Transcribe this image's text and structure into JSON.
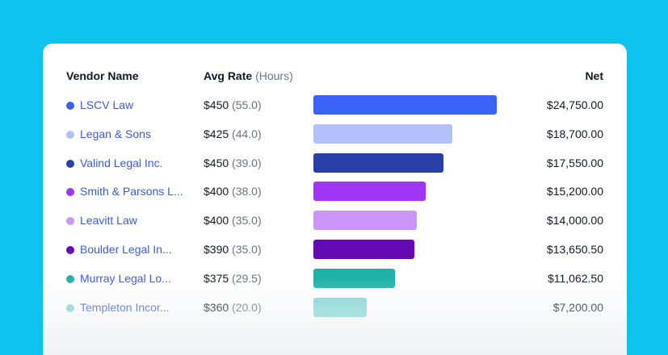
{
  "header": {
    "vendor_label": "Vendor Name",
    "rate_label": "Avg Rate",
    "rate_unit": "(Hours)",
    "net_label": "Net"
  },
  "max_net": 24750,
  "rows": [
    {
      "vendor": "LSCV Law",
      "rate": "$450",
      "hours": "(55.0)",
      "net": "$24,750.00",
      "net_value": 24750,
      "color": "#3a63f5"
    },
    {
      "vendor": "Legan & Sons",
      "rate": "$425",
      "hours": "(44.0)",
      "net": "$18,700.00",
      "net_value": 18700,
      "color": "#b2c1fb"
    },
    {
      "vendor": "Valind Legal Inc.",
      "rate": "$450",
      "hours": "(39.0)",
      "net": "$17,550.00",
      "net_value": 17550,
      "color": "#2a3fa8"
    },
    {
      "vendor": "Smith & Parsons L...",
      "rate": "$400",
      "hours": "(38.0)",
      "net": "$15,200.00",
      "net_value": 15200,
      "color": "#a036f5"
    },
    {
      "vendor": "Leavitt Law",
      "rate": "$400",
      "hours": "(35.0)",
      "net": "$14,000.00",
      "net_value": 14000,
      "color": "#cb95f9"
    },
    {
      "vendor": "Boulder Legal In...",
      "rate": "$390",
      "hours": "(35.0)",
      "net": "$13,650.50",
      "net_value": 13650.5,
      "color": "#6509b4"
    },
    {
      "vendor": "Murray Legal Lo...",
      "rate": "$375",
      "hours": "(29.5)",
      "net": "$11,062.50",
      "net_value": 11062.5,
      "color": "#1fb2a8"
    },
    {
      "vendor": "Templeton Incor...",
      "rate": "$360",
      "hours": "(20.0)",
      "net": "$7,200.00",
      "net_value": 7200,
      "color": "#82d8d5"
    }
  ]
}
